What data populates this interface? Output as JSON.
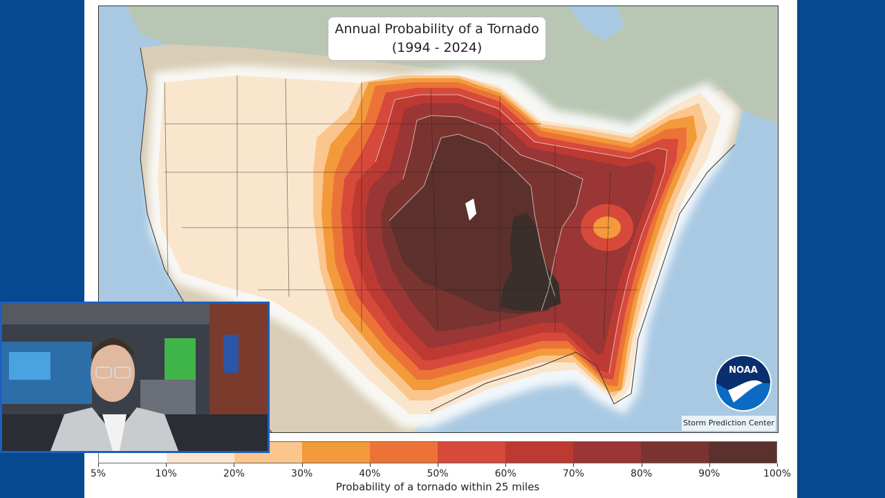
{
  "map": {
    "title_line1": "Annual Probability of a Tornado",
    "title_line2": "(1994 - 2024)",
    "credit": "Storm Prediction Center",
    "logo_text": "NOAA"
  },
  "colorbar": {
    "label": "Probability of a tornado within 25 miles",
    "ticks": [
      "5%",
      "10%",
      "20%",
      "30%",
      "40%",
      "50%",
      "60%",
      "70%",
      "80%",
      "90%",
      "100%"
    ],
    "colors": [
      "#ffffff",
      "#f9e6cd",
      "#fbc68e",
      "#f39a3a",
      "#ec7337",
      "#d6493b",
      "#bd3a33",
      "#9a3636",
      "#7a3430",
      "#5c302d"
    ]
  },
  "theme": {
    "side_panel": "#05498f",
    "pip_border": "#1d5fbf"
  }
}
